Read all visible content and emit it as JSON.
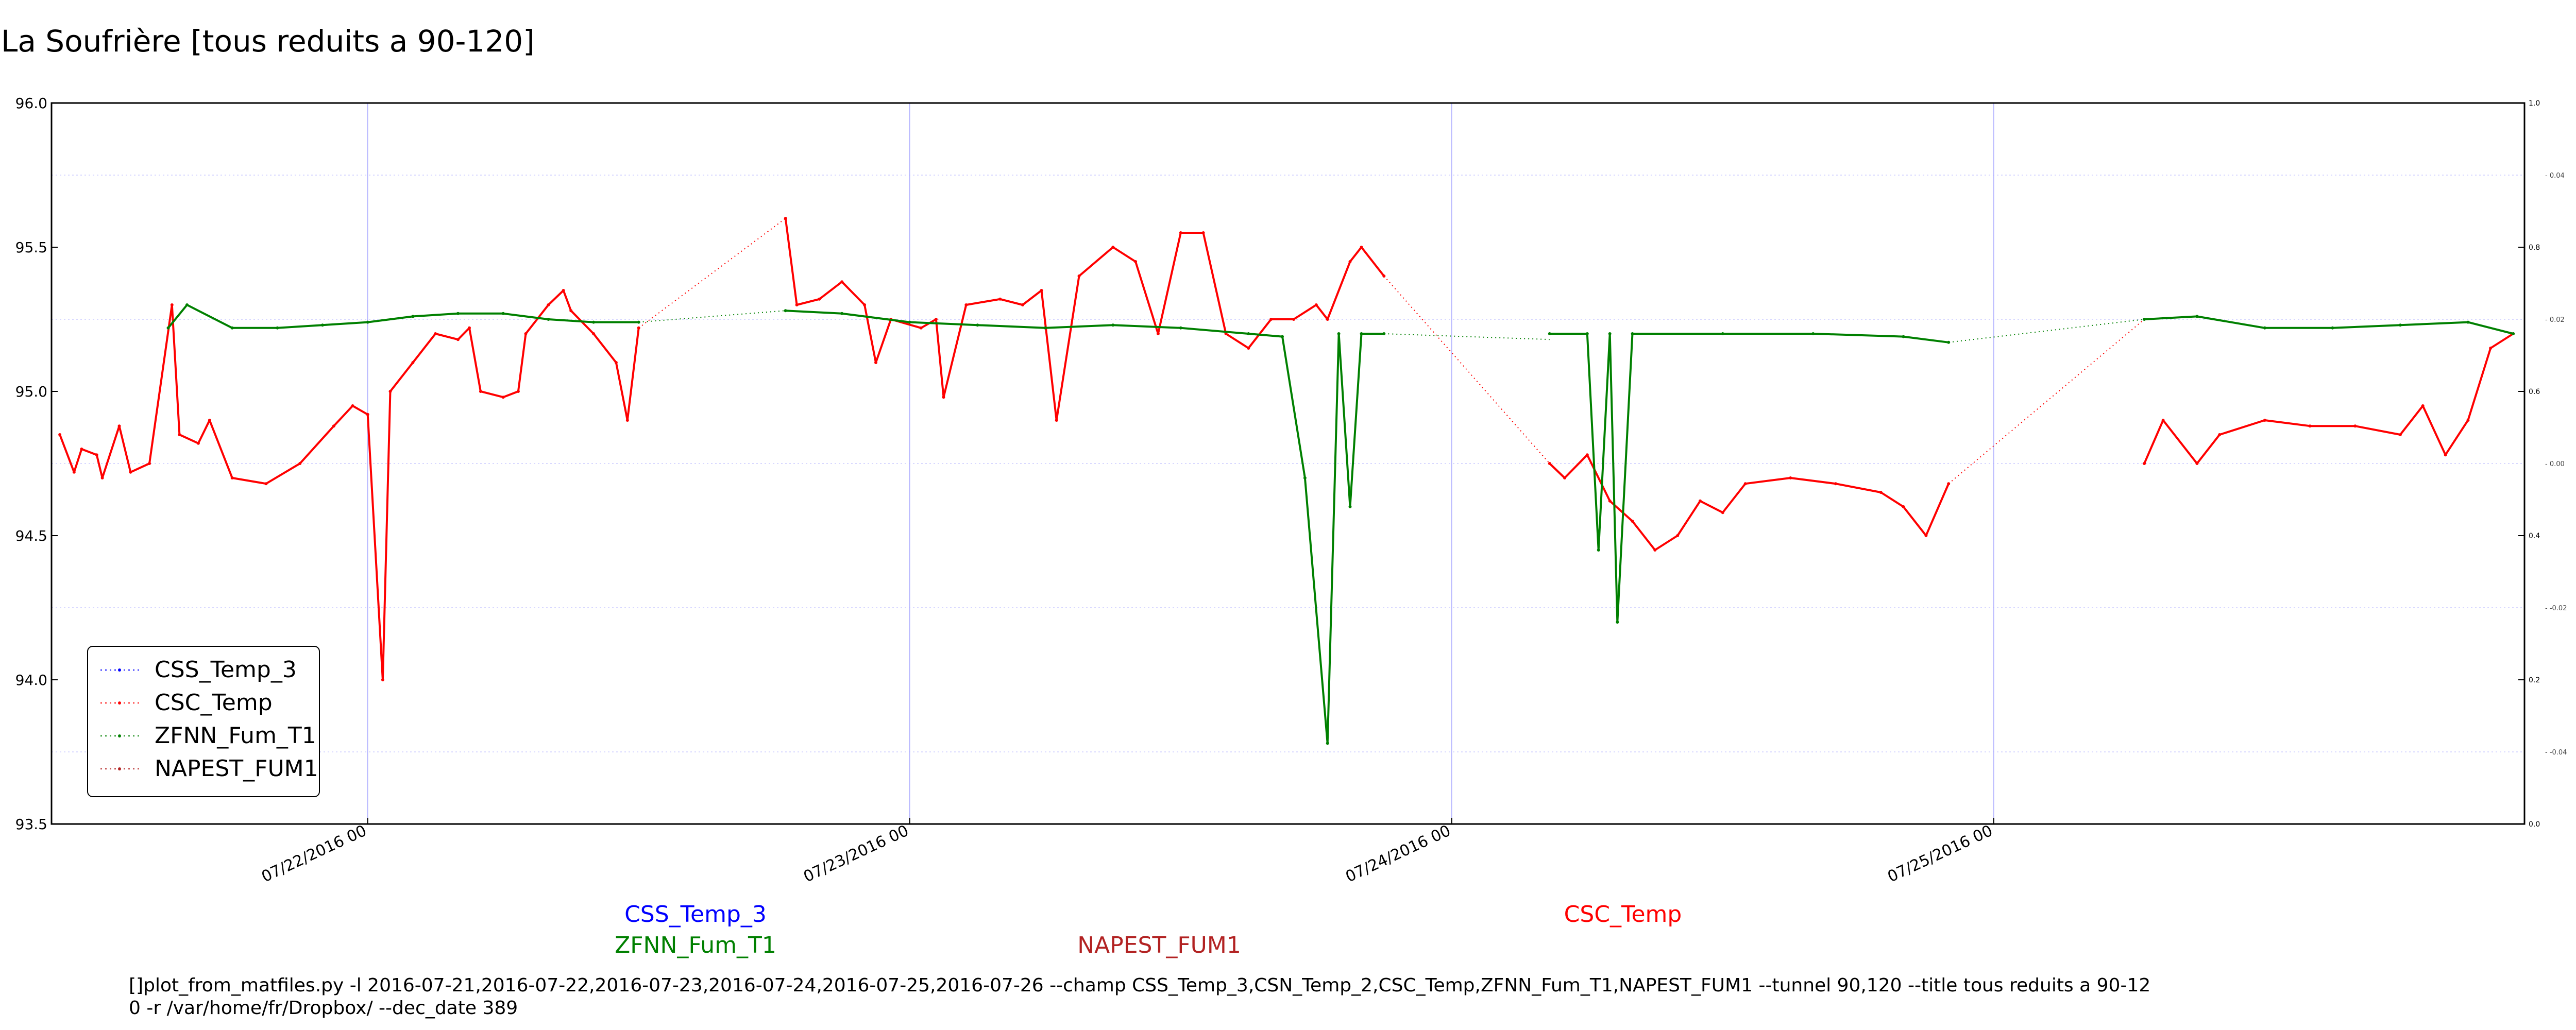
{
  "chart_data": {
    "type": "line",
    "title": "La Soufrière [tous reduits a 90-120]",
    "xlabel": "",
    "ylabel": "",
    "ylim": [
      93.5,
      96.0
    ],
    "y_ticks": [
      "93.5",
      "94.0",
      "94.5",
      "95.0",
      "95.5",
      "96.0"
    ],
    "y2lim": [
      0.0,
      1.0
    ],
    "y2_ticks": [
      "0.0",
      "0.2",
      "0.4",
      "0.6",
      "0.8",
      "1.0"
    ],
    "y3_ticks": [
      "-0.04",
      "-0.02",
      "0.00",
      "0.02",
      "0.04"
    ],
    "x_range": [
      "2016-07-21 10:00",
      "2016-07-25 23:30"
    ],
    "x_ticks": [
      "07/22/2016 00",
      "07/23/2016 00",
      "07/24/2016 00",
      "07/25/2016 00"
    ],
    "grid": true,
    "legend_position": "lower-left",
    "legend": [
      {
        "name": "CSS_Temp_3",
        "color": "#0000ff"
      },
      {
        "name": "CSC_Temp",
        "color": "#ff0000"
      },
      {
        "name": "ZFNN_Fum_T1",
        "color": "#008000"
      },
      {
        "name": "NAPEST_FUM1",
        "color": "#b22222"
      }
    ],
    "series": [
      {
        "name": "CSC_Temp",
        "color": "#ff0000",
        "segments": [
          [
            [
              "2016-07-21 10:22",
              94.85
            ],
            [
              "2016-07-21 11:00",
              94.72
            ],
            [
              "2016-07-21 11:20",
              94.8
            ],
            [
              "2016-07-21 12:00",
              94.78
            ],
            [
              "2016-07-21 12:15",
              94.7
            ],
            [
              "2016-07-21 13:00",
              94.88
            ],
            [
              "2016-07-21 13:30",
              94.72
            ],
            [
              "2016-07-21 14:20",
              94.75
            ],
            [
              "2016-07-21 15:20",
              95.3
            ],
            [
              "2016-07-21 15:40",
              94.85
            ],
            [
              "2016-07-21 16:30",
              94.82
            ],
            [
              "2016-07-21 17:00",
              94.9
            ],
            [
              "2016-07-21 18:00",
              94.7
            ],
            [
              "2016-07-21 19:30",
              94.68
            ],
            [
              "2016-07-21 21:00",
              94.75
            ],
            [
              "2016-07-21 22:30",
              94.88
            ],
            [
              "2016-07-21 23:20",
              94.95
            ],
            [
              "2016-07-22 00:00",
              94.92
            ],
            [
              "2016-07-22 00:40",
              94.0
            ],
            [
              "2016-07-22 01:00",
              95.0
            ],
            [
              "2016-07-22 02:00",
              95.1
            ],
            [
              "2016-07-22 03:00",
              95.2
            ],
            [
              "2016-07-22 04:00",
              95.18
            ],
            [
              "2016-07-22 04:30",
              95.22
            ],
            [
              "2016-07-22 05:00",
              95.0
            ],
            [
              "2016-07-22 06:00",
              94.98
            ],
            [
              "2016-07-22 06:40",
              95.0
            ],
            [
              "2016-07-22 07:00",
              95.2
            ],
            [
              "2016-07-22 08:00",
              95.3
            ],
            [
              "2016-07-22 08:40",
              95.35
            ],
            [
              "2016-07-22 09:00",
              95.28
            ],
            [
              "2016-07-22 10:00",
              95.2
            ],
            [
              "2016-07-22 11:00",
              95.1
            ],
            [
              "2016-07-22 11:30",
              94.9
            ],
            [
              "2016-07-22 12:00",
              95.22
            ]
          ],
          [
            [
              "2016-07-22 12:00",
              95.22
            ],
            [
              "2016-07-22 18:30",
              95.6
            ]
          ],
          [
            [
              "2016-07-22 18:30",
              95.6
            ],
            [
              "2016-07-22 19:00",
              95.3
            ],
            [
              "2016-07-22 20:00",
              95.32
            ],
            [
              "2016-07-22 21:00",
              95.38
            ],
            [
              "2016-07-22 22:00",
              95.3
            ],
            [
              "2016-07-22 22:30",
              95.1
            ],
            [
              "2016-07-22 23:10",
              95.25
            ],
            [
              "2016-07-23 00:30",
              95.22
            ],
            [
              "2016-07-23 01:10",
              95.25
            ],
            [
              "2016-07-23 01:30",
              94.98
            ],
            [
              "2016-07-23 02:30",
              95.3
            ],
            [
              "2016-07-23 04:00",
              95.32
            ],
            [
              "2016-07-23 05:00",
              95.3
            ],
            [
              "2016-07-23 05:50",
              95.35
            ],
            [
              "2016-07-23 06:30",
              94.9
            ],
            [
              "2016-07-23 07:30",
              95.4
            ],
            [
              "2016-07-23 09:00",
              95.5
            ],
            [
              "2016-07-23 10:00",
              95.45
            ],
            [
              "2016-07-23 11:00",
              95.2
            ],
            [
              "2016-07-23 12:00",
              95.55
            ],
            [
              "2016-07-23 13:00",
              95.55
            ],
            [
              "2016-07-23 14:00",
              95.2
            ],
            [
              "2016-07-23 15:00",
              95.15
            ],
            [
              "2016-07-23 16:00",
              95.25
            ],
            [
              "2016-07-23 17:00",
              95.25
            ],
            [
              "2016-07-23 18:00",
              95.3
            ],
            [
              "2016-07-23 18:30",
              95.25
            ],
            [
              "2016-07-23 19:30",
              95.45
            ],
            [
              "2016-07-23 20:00",
              95.5
            ],
            [
              "2016-07-23 21:00",
              95.4
            ]
          ],
          [
            [
              "2016-07-23 21:00",
              95.4
            ],
            [
              "2016-07-24 04:20",
              94.75
            ]
          ],
          [
            [
              "2016-07-24 04:20",
              94.75
            ],
            [
              "2016-07-24 05:00",
              94.7
            ],
            [
              "2016-07-24 06:00",
              94.78
            ],
            [
              "2016-07-24 07:00",
              94.62
            ],
            [
              "2016-07-24 08:00",
              94.55
            ],
            [
              "2016-07-24 09:00",
              94.45
            ],
            [
              "2016-07-24 10:00",
              94.5
            ],
            [
              "2016-07-24 11:00",
              94.62
            ],
            [
              "2016-07-24 12:00",
              94.58
            ],
            [
              "2016-07-24 13:00",
              94.68
            ],
            [
              "2016-07-24 15:00",
              94.7
            ],
            [
              "2016-07-24 17:00",
              94.68
            ],
            [
              "2016-07-24 19:00",
              94.65
            ],
            [
              "2016-07-24 20:00",
              94.6
            ],
            [
              "2016-07-24 21:00",
              94.5
            ],
            [
              "2016-07-24 22:00",
              94.68
            ]
          ],
          [
            [
              "2016-07-24 22:00",
              94.68
            ],
            [
              "2016-07-25 06:40",
              95.25
            ]
          ],
          [
            [
              "2016-07-25 06:40",
              94.75
            ],
            [
              "2016-07-25 07:30",
              94.9
            ],
            [
              "2016-07-25 09:00",
              94.75
            ],
            [
              "2016-07-25 10:00",
              94.85
            ],
            [
              "2016-07-25 12:00",
              94.9
            ],
            [
              "2016-07-25 14:00",
              94.88
            ],
            [
              "2016-07-25 16:00",
              94.88
            ],
            [
              "2016-07-25 18:00",
              94.85
            ],
            [
              "2016-07-25 19:00",
              94.95
            ],
            [
              "2016-07-25 20:00",
              94.78
            ],
            [
              "2016-07-25 21:00",
              94.9
            ],
            [
              "2016-07-25 22:00",
              95.15
            ],
            [
              "2016-07-25 23:00",
              95.2
            ]
          ]
        ]
      },
      {
        "name": "ZFNN_Fum_T1",
        "color": "#008000",
        "segments": [
          [
            [
              "2016-07-21 15:10",
              95.22
            ],
            [
              "2016-07-21 16:00",
              95.3
            ],
            [
              "2016-07-21 18:00",
              95.22
            ],
            [
              "2016-07-21 20:00",
              95.22
            ],
            [
              "2016-07-21 22:00",
              95.23
            ],
            [
              "2016-07-22 00:00",
              95.24
            ],
            [
              "2016-07-22 02:00",
              95.26
            ],
            [
              "2016-07-22 04:00",
              95.27
            ],
            [
              "2016-07-22 06:00",
              95.27
            ],
            [
              "2016-07-22 08:00",
              95.25
            ],
            [
              "2016-07-22 10:00",
              95.24
            ],
            [
              "2016-07-22 12:00",
              95.24
            ]
          ],
          [
            [
              "2016-07-22 12:00",
              95.24
            ],
            [
              "2016-07-22 18:30",
              95.28
            ]
          ],
          [
            [
              "2016-07-22 18:30",
              95.28
            ],
            [
              "2016-07-22 21:00",
              95.27
            ],
            [
              "2016-07-23 00:00",
              95.24
            ],
            [
              "2016-07-23 03:00",
              95.23
            ],
            [
              "2016-07-23 06:00",
              95.22
            ],
            [
              "2016-07-23 09:00",
              95.23
            ],
            [
              "2016-07-23 12:00",
              95.22
            ],
            [
              "2016-07-23 15:00",
              95.2
            ],
            [
              "2016-07-23 16:30",
              95.19
            ],
            [
              "2016-07-23 17:30",
              94.7
            ],
            [
              "2016-07-23 18:30",
              93.78
            ],
            [
              "2016-07-23 19:00",
              95.2
            ],
            [
              "2016-07-23 19:30",
              94.6
            ],
            [
              "2016-07-23 20:00",
              95.2
            ],
            [
              "2016-07-23 21:00",
              95.2
            ]
          ],
          [
            [
              "2016-07-23 21:00",
              95.2
            ],
            [
              "2016-07-24 04:20",
              95.18
            ]
          ],
          [
            [
              "2016-07-24 04:20",
              95.2
            ],
            [
              "2016-07-24 06:00",
              95.2
            ],
            [
              "2016-07-24 06:30",
              94.45
            ],
            [
              "2016-07-24 07:00",
              95.2
            ],
            [
              "2016-07-24 07:20",
              94.2
            ],
            [
              "2016-07-24 08:00",
              95.2
            ],
            [
              "2016-07-24 12:00",
              95.2
            ],
            [
              "2016-07-24 16:00",
              95.2
            ],
            [
              "2016-07-24 20:00",
              95.19
            ],
            [
              "2016-07-24 22:00",
              95.17
            ]
          ],
          [
            [
              "2016-07-24 22:00",
              95.17
            ],
            [
              "2016-07-25 06:40",
              95.25
            ]
          ],
          [
            [
              "2016-07-25 06:40",
              95.25
            ],
            [
              "2016-07-25 09:00",
              95.26
            ],
            [
              "2016-07-25 12:00",
              95.22
            ],
            [
              "2016-07-25 15:00",
              95.22
            ],
            [
              "2016-07-25 18:00",
              95.23
            ],
            [
              "2016-07-25 21:00",
              95.24
            ],
            [
              "2016-07-25 23:00",
              95.2
            ]
          ]
        ]
      }
    ],
    "annotations": [
      {
        "text": "CSS_Temp_3",
        "color": "#0000ff"
      },
      {
        "text": "ZFNN_Fum_T1",
        "color": "#008000"
      },
      {
        "text": "NAPEST_FUM1",
        "color": "#b22222"
      },
      {
        "text": "CSC_Temp",
        "color": "#ff0000"
      }
    ]
  },
  "command_line": "[]plot_from_matfiles.py -l 2016-07-21,2016-07-22,2016-07-23,2016-07-24,2016-07-25,2016-07-26 --champ CSS_Temp_3,CSN_Temp_2,CSC_Temp,ZFNN_Fum_T1,NAPEST_FUM1 --tunnel 90,120 --title tous reduits a 90-12\n0 -r /var/home/fr/Dropbox/ --dec_date 389"
}
